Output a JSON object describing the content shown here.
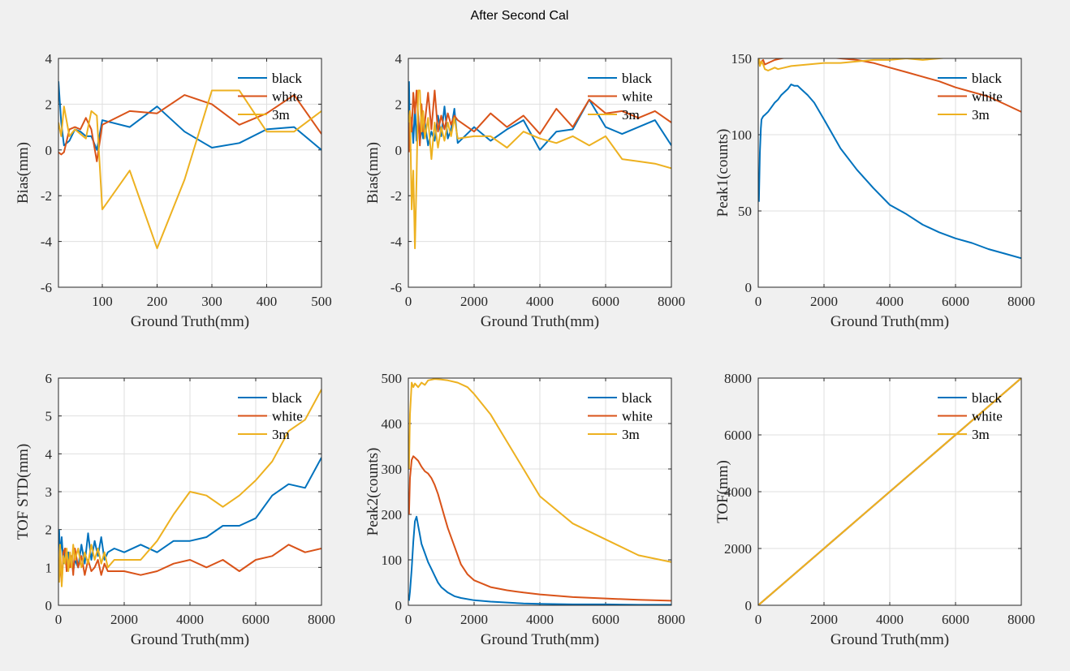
{
  "figure_title": "After Second Cal",
  "colors": {
    "black": "#0072BD",
    "white": "#D95319",
    "3m": "#EDB120",
    "grid": "#dfdfdf",
    "axes_bg": "#ffffff",
    "figure_bg": "#f0f0f0"
  },
  "chart_data": [
    {
      "id": "bias-near",
      "type": "line",
      "xlabel": "Ground Truth(mm)",
      "ylabel": "Bias(mm)",
      "xlim": [
        20,
        500
      ],
      "ylim": [
        -6,
        4
      ],
      "xticks": [
        100,
        200,
        300,
        400,
        500
      ],
      "yticks": [
        -6,
        -4,
        -2,
        0,
        2,
        4
      ],
      "grid": true,
      "legend_position": "top-right",
      "series": [
        {
          "name": "black",
          "x": [
            20,
            25,
            30,
            40,
            50,
            60,
            70,
            80,
            90,
            100,
            150,
            200,
            250,
            300,
            350,
            400,
            450,
            500
          ],
          "y": [
            3.0,
            1.2,
            0.2,
            0.4,
            0.9,
            0.8,
            0.6,
            0.6,
            0.0,
            1.3,
            1.0,
            1.9,
            0.8,
            0.1,
            0.3,
            0.9,
            1.0,
            0.0
          ]
        },
        {
          "name": "white",
          "x": [
            20,
            25,
            30,
            40,
            50,
            60,
            70,
            80,
            90,
            100,
            150,
            200,
            250,
            300,
            350,
            400,
            450,
            500
          ],
          "y": [
            -0.1,
            -0.2,
            -0.1,
            0.9,
            1.0,
            0.9,
            1.4,
            0.9,
            -0.5,
            1.1,
            1.7,
            1.6,
            2.4,
            2.0,
            1.1,
            1.6,
            2.4,
            0.7
          ]
        },
        {
          "name": "3m",
          "x": [
            20,
            25,
            30,
            40,
            50,
            60,
            70,
            80,
            90,
            100,
            150,
            200,
            250,
            300,
            350,
            400,
            450,
            500
          ],
          "y": [
            1.2,
            0.6,
            1.9,
            0.6,
            0.9,
            0.7,
            0.5,
            1.7,
            1.5,
            -2.6,
            -0.9,
            -4.3,
            -1.3,
            2.6,
            2.6,
            0.8,
            0.8,
            1.7
          ]
        }
      ]
    },
    {
      "id": "bias-full",
      "type": "line",
      "xlabel": "Ground Truth(mm)",
      "ylabel": "Bias(mm)",
      "xlim": [
        0,
        8000
      ],
      "ylim": [
        -6,
        4
      ],
      "xticks": [
        0,
        2000,
        4000,
        6000,
        8000
      ],
      "yticks": [
        -6,
        -4,
        -2,
        0,
        2,
        4
      ],
      "grid": true,
      "legend_position": "top-right",
      "series": [
        {
          "name": "black",
          "x": [
            20,
            50,
            100,
            150,
            200,
            250,
            300,
            350,
            400,
            450,
            500,
            600,
            700,
            800,
            900,
            1000,
            1100,
            1200,
            1300,
            1400,
            1500,
            2000,
            2500,
            3000,
            3500,
            4000,
            4500,
            5000,
            5500,
            6000,
            6500,
            7000,
            7500,
            8000
          ],
          "y": [
            3.0,
            0.6,
            1.4,
            0.3,
            1.9,
            0.4,
            1.5,
            0.3,
            1.0,
            0.5,
            1.2,
            0.2,
            0.8,
            0.4,
            1.5,
            0.6,
            1.9,
            0.5,
            0.9,
            1.8,
            0.3,
            1.0,
            0.4,
            0.9,
            1.3,
            0.0,
            0.8,
            0.9,
            2.2,
            1.0,
            0.7,
            1.0,
            1.3,
            0.2
          ]
        },
        {
          "name": "white",
          "x": [
            20,
            50,
            100,
            150,
            200,
            250,
            300,
            350,
            400,
            450,
            500,
            600,
            700,
            800,
            900,
            1000,
            1100,
            1200,
            1300,
            1400,
            1500,
            2000,
            2500,
            3000,
            3500,
            4000,
            4500,
            5000,
            5500,
            6000,
            6500,
            7000,
            7500,
            8000
          ],
          "y": [
            -0.1,
            1.7,
            0.8,
            2.5,
            1.6,
            2.6,
            1.5,
            0.2,
            2.0,
            0.8,
            1.2,
            2.5,
            0.9,
            2.6,
            0.8,
            1.5,
            0.9,
            1.6,
            1.1,
            1.5,
            1.3,
            0.8,
            1.6,
            1.0,
            1.5,
            0.7,
            1.8,
            1.0,
            2.2,
            1.6,
            1.7,
            1.4,
            1.7,
            1.2
          ]
        },
        {
          "name": "3m",
          "x": [
            20,
            50,
            100,
            150,
            200,
            250,
            300,
            350,
            400,
            450,
            500,
            600,
            700,
            800,
            900,
            1000,
            1100,
            1200,
            1300,
            1400,
            1500,
            2000,
            2500,
            3000,
            3500,
            4000,
            4500,
            5000,
            5500,
            6000,
            6500,
            7000,
            7500,
            8000
          ],
          "y": [
            1.2,
            1.7,
            -2.6,
            -0.9,
            -4.3,
            -1.3,
            2.6,
            2.6,
            0.8,
            1.7,
            0.5,
            1.4,
            -0.4,
            1.2,
            0.1,
            1.0,
            0.4,
            1.2,
            0.6,
            1.4,
            0.5,
            0.6,
            0.6,
            0.1,
            0.8,
            0.5,
            0.3,
            0.6,
            0.2,
            0.6,
            -0.4,
            -0.5,
            -0.6,
            -0.8
          ]
        }
      ]
    },
    {
      "id": "peak1",
      "type": "line",
      "xlabel": "Ground Truth(mm)",
      "ylabel": "Peak1(counts)",
      "xlim": [
        0,
        8000
      ],
      "ylim": [
        0,
        150
      ],
      "xticks": [
        0,
        2000,
        4000,
        6000,
        8000
      ],
      "yticks": [
        0,
        50,
        100,
        150
      ],
      "grid": true,
      "legend_position": "top-right",
      "series": [
        {
          "name": "black",
          "x": [
            20,
            50,
            80,
            100,
            150,
            200,
            300,
            400,
            500,
            600,
            700,
            800,
            900,
            1000,
            1100,
            1200,
            1300,
            1400,
            1500,
            1700,
            2000,
            2500,
            3000,
            3500,
            4000,
            4500,
            5000,
            5500,
            6000,
            6500,
            7000,
            7500,
            8000
          ],
          "y": [
            56,
            88,
            104,
            110,
            112,
            113,
            115,
            118,
            121,
            123,
            126,
            128,
            130,
            133,
            132,
            132,
            130,
            128,
            126,
            121,
            110,
            91,
            77,
            65,
            54,
            48,
            41,
            36,
            32,
            29,
            25,
            22,
            19
          ]
        },
        {
          "name": "white",
          "x": [
            20,
            50,
            100,
            150,
            200,
            300,
            500,
            700,
            1000,
            1300,
            1500,
            2000,
            2500,
            3000,
            3500,
            4000,
            4500,
            5000,
            5500,
            6000,
            6500,
            7000,
            7500,
            8000
          ],
          "y": [
            150,
            146,
            148,
            149,
            146,
            147,
            149,
            150,
            151,
            151,
            152,
            151,
            150,
            149,
            147,
            144,
            141,
            138,
            135,
            131,
            128,
            125,
            120,
            115
          ]
        },
        {
          "name": "3m",
          "x": [
            20,
            50,
            100,
            150,
            200,
            300,
            400,
            500,
            600,
            800,
            1000,
            1500,
            2000,
            2500,
            3000,
            3500,
            4000,
            4500,
            5000,
            5500,
            6000,
            6500,
            7000,
            7500,
            8000
          ],
          "y": [
            150,
            145,
            148,
            146,
            143,
            142,
            143,
            144,
            143,
            144,
            145,
            146,
            147,
            147,
            148,
            149,
            149,
            150,
            149,
            150,
            151,
            151,
            152,
            151,
            151
          ]
        }
      ]
    },
    {
      "id": "tof-std",
      "type": "line",
      "xlabel": "Ground Truth(mm)",
      "ylabel": "TOF STD(mm)",
      "xlim": [
        0,
        8000
      ],
      "ylim": [
        0,
        6
      ],
      "xticks": [
        0,
        2000,
        4000,
        6000,
        8000
      ],
      "yticks": [
        0,
        1,
        2,
        3,
        4,
        5,
        6
      ],
      "grid": true,
      "legend_position": "top-right",
      "series": [
        {
          "name": "black",
          "x": [
            20,
            50,
            100,
            150,
            200,
            250,
            300,
            350,
            400,
            450,
            500,
            600,
            700,
            800,
            900,
            1000,
            1100,
            1200,
            1300,
            1400,
            1500,
            1700,
            2000,
            2500,
            3000,
            3500,
            4000,
            4500,
            5000,
            5500,
            6000,
            6500,
            7000,
            7500,
            8000
          ],
          "y": [
            2.0,
            1.3,
            1.8,
            1.1,
            1.5,
            1.0,
            1.4,
            1.1,
            1.3,
            0.9,
            1.2,
            1.0,
            1.6,
            1.1,
            1.9,
            1.2,
            1.7,
            1.3,
            1.8,
            1.2,
            1.4,
            1.5,
            1.4,
            1.6,
            1.4,
            1.7,
            1.7,
            1.8,
            2.1,
            2.1,
            2.3,
            2.9,
            3.2,
            3.1,
            3.9
          ]
        },
        {
          "name": "white",
          "x": [
            20,
            50,
            100,
            150,
            200,
            250,
            300,
            350,
            400,
            450,
            500,
            600,
            700,
            800,
            900,
            1000,
            1100,
            1200,
            1300,
            1400,
            1500,
            1700,
            2000,
            2500,
            3000,
            3500,
            4000,
            4500,
            5000,
            5500,
            6000,
            6500,
            7000,
            7500,
            8000
          ],
          "y": [
            1.2,
            1.0,
            0.6,
            1.4,
            1.5,
            0.9,
            1.2,
            1.0,
            1.3,
            0.8,
            1.5,
            1.0,
            1.3,
            0.8,
            1.2,
            0.9,
            1.0,
            1.2,
            0.8,
            1.1,
            0.9,
            0.9,
            0.9,
            0.8,
            0.9,
            1.1,
            1.2,
            1.0,
            1.2,
            0.9,
            1.2,
            1.3,
            1.6,
            1.4,
            1.5
          ]
        },
        {
          "name": "3m",
          "x": [
            20,
            50,
            100,
            150,
            200,
            250,
            300,
            350,
            400,
            450,
            500,
            600,
            700,
            800,
            900,
            1000,
            1100,
            1200,
            1300,
            1400,
            1500,
            1700,
            2000,
            2500,
            3000,
            3500,
            4000,
            4500,
            5000,
            5500,
            6000,
            6500,
            7000,
            7500,
            8000
          ],
          "y": [
            0.6,
            1.6,
            0.5,
            1.3,
            1.1,
            1.5,
            0.9,
            1.4,
            1.0,
            1.6,
            1.2,
            1.5,
            1.0,
            1.4,
            1.1,
            1.6,
            1.2,
            1.5,
            1.1,
            1.4,
            1.0,
            1.2,
            1.2,
            1.2,
            1.7,
            2.4,
            3.0,
            2.9,
            2.6,
            2.9,
            3.3,
            3.8,
            4.6,
            4.9,
            5.7
          ]
        }
      ]
    },
    {
      "id": "peak2",
      "type": "line",
      "xlabel": "Ground Truth(mm)",
      "ylabel": "Peak2(counts)",
      "xlim": [
        0,
        8000
      ],
      "ylim": [
        0,
        500
      ],
      "xticks": [
        0,
        2000,
        4000,
        6000,
        8000
      ],
      "yticks": [
        0,
        100,
        200,
        300,
        400,
        500
      ],
      "grid": true,
      "legend_position": "top-right",
      "series": [
        {
          "name": "black",
          "x": [
            20,
            50,
            100,
            150,
            200,
            250,
            300,
            350,
            400,
            500,
            600,
            700,
            800,
            900,
            1000,
            1200,
            1400,
            1600,
            2000,
            2500,
            3000,
            3500,
            4000,
            5000,
            6000,
            7000,
            8000
          ],
          "y": [
            10,
            30,
            80,
            140,
            185,
            195,
            175,
            155,
            135,
            115,
            95,
            80,
            65,
            50,
            40,
            28,
            20,
            16,
            11,
            8,
            6,
            4,
            3,
            2,
            2,
            1,
            1
          ]
        },
        {
          "name": "white",
          "x": [
            20,
            50,
            100,
            150,
            200,
            300,
            400,
            500,
            600,
            700,
            800,
            900,
            1000,
            1100,
            1200,
            1400,
            1600,
            1800,
            2000,
            2500,
            3000,
            3500,
            4000,
            5000,
            6000,
            7000,
            8000
          ],
          "y": [
            200,
            280,
            320,
            328,
            325,
            318,
            305,
            295,
            290,
            280,
            265,
            245,
            220,
            195,
            170,
            130,
            90,
            68,
            55,
            40,
            33,
            28,
            24,
            18,
            15,
            12,
            10
          ]
        },
        {
          "name": "3m",
          "x": [
            20,
            50,
            100,
            150,
            200,
            300,
            400,
            500,
            600,
            800,
            1000,
            1200,
            1500,
            1800,
            2000,
            2500,
            3000,
            3500,
            4000,
            5000,
            6000,
            7000,
            8000
          ],
          "y": [
            300,
            420,
            490,
            480,
            488,
            480,
            490,
            485,
            495,
            498,
            497,
            495,
            490,
            480,
            465,
            420,
            360,
            300,
            240,
            180,
            145,
            110,
            95
          ]
        }
      ]
    },
    {
      "id": "tof",
      "type": "line",
      "xlabel": "Ground Truth(mm)",
      "ylabel": "TOF(mm)",
      "xlim": [
        0,
        8000
      ],
      "ylim": [
        0,
        8000
      ],
      "xticks": [
        0,
        2000,
        4000,
        6000,
        8000
      ],
      "yticks": [
        0,
        2000,
        4000,
        6000,
        8000
      ],
      "grid": true,
      "legend_position": "top-right",
      "series": [
        {
          "name": "black",
          "x": [
            20,
            8000
          ],
          "y": [
            20,
            8000
          ]
        },
        {
          "name": "white",
          "x": [
            20,
            8000
          ],
          "y": [
            20,
            8000
          ]
        },
        {
          "name": "3m",
          "x": [
            20,
            8000
          ],
          "y": [
            20,
            8000
          ]
        }
      ]
    }
  ]
}
